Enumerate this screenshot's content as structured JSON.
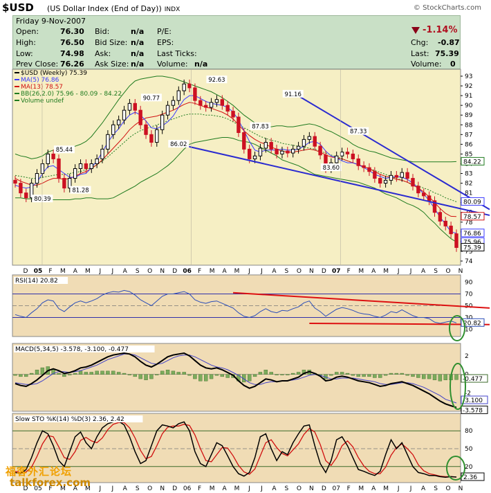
{
  "header": {
    "symbol": "$USD",
    "name": "(US Dollar Index (End of Day))",
    "exchange": "INDX",
    "copyright": "© StockCharts.com"
  },
  "quote": {
    "date": "Friday  9-Nov-2007",
    "open_l": "Open:",
    "open": "76.30",
    "high_l": "High:",
    "high": "76.50",
    "low_l": "Low:",
    "low": "74.98",
    "prev_l": "Prev Close:",
    "prev": "76.26",
    "bid_l": "Bid:",
    "bid": "n/a",
    "bidsize_l": "Bid Size:",
    "bidsize": "n/a",
    "ask_l": "Ask:",
    "ask": "n/a",
    "asksize_l": "Ask Size:",
    "asksize": "n/a",
    "pe_l": "P/E:",
    "eps_l": "EPS:",
    "lastticks_l": "Last Ticks:",
    "volume_ticks_l": "Volume:",
    "volume_ticks": "n/a",
    "change_pct": "-1.14%",
    "chg_l": "Chg:",
    "chg": "-0.87",
    "last_l": "Last:",
    "last": "75.39",
    "vol_l": "Volume:",
    "vol": "0"
  },
  "colors": {
    "price_bg": "#f6efc4",
    "ind_bg": "#f0dcb5",
    "up": "#000000",
    "down": "#cc1122",
    "ma5": "#3a3aff",
    "ma13": "#d01010",
    "bb": "#1e7a1e",
    "trend": "#2a2ad0",
    "redline": "#dd1010",
    "circle": "#2f8f2f"
  },
  "chart_data": [
    {
      "type": "candlestick",
      "title": "$USD (Weekly) 75.39",
      "legend": [
        "$USD (Weekly) 75.39",
        "MA(5) 76.86",
        "MA(13) 78.57",
        "BB(26,2.0) 75.96 - 80.09 - 84.22",
        "Volume undef"
      ],
      "ylim": [
        74,
        93
      ],
      "y_ticks": [
        74,
        75,
        76,
        77,
        78,
        79,
        80,
        81,
        82,
        83,
        84,
        85,
        86,
        87,
        88,
        89,
        90,
        91,
        92,
        93
      ],
      "x_ticks": [
        "D",
        "05",
        "F",
        "M",
        "A",
        "M",
        "J",
        "J",
        "A",
        "S",
        "O",
        "N",
        "D",
        "06",
        "F",
        "M",
        "A",
        "M",
        "J",
        "J",
        "A",
        "S",
        "O",
        "N",
        "D",
        "07",
        "F",
        "M",
        "A",
        "M",
        "J",
        "J",
        "A",
        "S",
        "O",
        "N"
      ],
      "close": [
        82.0,
        81.0,
        80.5,
        82.0,
        83.0,
        84.0,
        85.0,
        84.5,
        82.5,
        81.5,
        82.5,
        83.5,
        84.0,
        83.5,
        84.0,
        84.5,
        85.5,
        87.0,
        88.0,
        88.5,
        89.5,
        90.2,
        89.5,
        88.0,
        87.0,
        86.2,
        87.5,
        89.0,
        90.0,
        90.5,
        91.5,
        92.2,
        91.8,
        90.5,
        90.0,
        89.8,
        90.3,
        90.6,
        90.0,
        89.4,
        88.8,
        87.2,
        85.5,
        84.5,
        84.8,
        85.6,
        86.2,
        85.5,
        85.0,
        85.3,
        85.1,
        85.5,
        85.8,
        86.5,
        86.8,
        85.8,
        84.9,
        83.5,
        84.1,
        84.8,
        85.2,
        85.0,
        84.5,
        83.8,
        83.6,
        83.2,
        82.5,
        82.0,
        82.3,
        82.8,
        82.6,
        83.1,
        82.5,
        81.7,
        81.0,
        80.7,
        80.2,
        79.0,
        78.1,
        77.6,
        76.8,
        75.39
      ],
      "ma5": [
        81.8,
        81.6,
        81.5,
        81.6,
        82.1,
        83.0,
        83.7,
        83.8,
        83.4,
        83.0,
        82.6,
        82.6,
        82.9,
        83.0,
        83.6,
        84.3,
        85.2,
        86.2,
        87.0,
        87.6,
        88.4,
        89.0,
        89.3,
        89.0,
        88.4,
        87.7,
        87.6,
        87.9,
        88.3,
        88.9,
        89.8,
        90.6,
        91.0,
        91.0,
        90.7,
        90.4,
        90.2,
        90.1,
        90.0,
        89.8,
        89.3,
        88.5,
        87.4,
        86.3,
        85.4,
        85.2,
        85.4,
        85.4,
        85.4,
        85.5,
        85.4,
        85.4,
        85.5,
        85.8,
        86.2,
        86.3,
        86.0,
        85.3,
        84.8,
        84.6,
        84.3,
        84.1,
        84.1,
        83.9,
        83.6,
        83.3,
        82.9,
        82.7,
        82.5,
        82.6,
        82.7,
        82.6,
        82.4,
        82.0,
        81.5,
        80.9,
        80.2,
        79.4,
        78.5,
        77.8,
        77.0,
        76.86
      ],
      "ma13": [
        82.5,
        82.2,
        82.0,
        81.8,
        81.8,
        82.0,
        82.3,
        82.5,
        82.5,
        82.4,
        82.5,
        82.7,
        83.0,
        83.2,
        83.5,
        83.9,
        84.4,
        85.0,
        85.6,
        86.2,
        86.8,
        87.5,
        88.0,
        88.4,
        88.7,
        88.8,
        88.9,
        89.1,
        89.3,
        89.5,
        89.8,
        90.1,
        90.3,
        90.2,
        90.0,
        89.8,
        89.7,
        89.5,
        89.3,
        89.0,
        88.6,
        88.0,
        87.4,
        86.9,
        86.5,
        86.2,
        86.0,
        85.7,
        85.5,
        85.3,
        85.2,
        85.2,
        85.3,
        85.4,
        85.5,
        85.4,
        85.2,
        84.9,
        84.7,
        84.6,
        84.5,
        84.3,
        84.1,
        83.9,
        83.7,
        83.5,
        83.2,
        82.9,
        82.7,
        82.6,
        82.4,
        82.3,
        82.1,
        81.8,
        81.5,
        81.1,
        80.6,
        80.0,
        79.4,
        78.9,
        78.6,
        78.57
      ],
      "bb_upper": [
        85.0,
        84.8,
        84.7,
        84.5,
        84.6,
        84.8,
        85.2,
        85.4,
        85.5,
        85.5,
        85.6,
        85.8,
        86.0,
        86.3,
        86.8,
        87.5,
        88.2,
        89.0,
        89.8,
        90.6,
        91.3,
        92.0,
        92.5,
        92.7,
        92.8,
        92.9,
        93.0,
        93.0,
        92.9,
        92.8,
        92.6,
        92.4,
        92.2,
        92.0,
        91.8,
        91.6,
        91.4,
        91.1,
        90.8,
        90.4,
        90.0,
        89.5,
        89.0,
        88.6,
        88.2,
        87.9,
        87.8,
        87.8,
        87.9,
        87.9,
        87.8,
        87.8,
        87.9,
        88.0,
        88.1,
        88.0,
        87.8,
        87.5,
        87.3,
        87.0,
        86.7,
        86.4,
        86.0,
        85.7,
        85.5,
        85.3,
        85.2,
        85.0,
        84.8,
        84.6,
        84.5,
        84.4,
        84.3,
        84.2,
        84.2,
        84.2,
        84.2,
        84.2,
        84.2,
        84.2,
        84.2,
        84.22
      ],
      "bb_mid": [
        82.8,
        82.7,
        82.6,
        82.5,
        82.5,
        82.6,
        82.7,
        82.8,
        82.9,
        82.9,
        83.0,
        83.1,
        83.2,
        83.4,
        83.6,
        83.9,
        84.3,
        84.7,
        85.2,
        85.7,
        86.2,
        86.7,
        87.1,
        87.4,
        87.6,
        87.8,
        88.0,
        88.2,
        88.4,
        88.6,
        88.8,
        89.0,
        89.1,
        89.1,
        89.1,
        89.0,
        89.0,
        88.9,
        88.8,
        88.6,
        88.3,
        88.0,
        87.7,
        87.4,
        87.1,
        86.8,
        86.6,
        86.4,
        86.3,
        86.1,
        86.0,
        85.9,
        85.8,
        85.7,
        85.6,
        85.5,
        85.3,
        85.1,
        84.9,
        84.7,
        84.5,
        84.3,
        84.1,
        83.9,
        83.7,
        83.5,
        83.3,
        83.1,
        82.9,
        82.7,
        82.5,
        82.3,
        82.1,
        81.9,
        81.7,
        81.5,
        81.3,
        81.0,
        80.8,
        80.5,
        80.3,
        80.09
      ],
      "bb_lower": [
        80.5,
        80.5,
        80.4,
        80.4,
        80.4,
        80.4,
        80.3,
        80.3,
        80.3,
        80.3,
        80.3,
        80.4,
        80.4,
        80.5,
        80.5,
        80.4,
        80.4,
        80.4,
        80.5,
        80.8,
        81.1,
        81.4,
        81.7,
        82.1,
        82.4,
        82.7,
        83.0,
        83.4,
        83.8,
        84.3,
        84.9,
        85.5,
        86.0,
        86.2,
        86.3,
        86.4,
        86.5,
        86.6,
        86.7,
        86.7,
        86.6,
        86.4,
        86.3,
        86.2,
        86.0,
        85.7,
        85.4,
        85.1,
        84.8,
        84.4,
        84.2,
        84.0,
        83.8,
        83.5,
        83.2,
        82.9,
        82.8,
        82.7,
        82.6,
        82.5,
        82.4,
        82.3,
        82.2,
        82.1,
        81.9,
        81.7,
        81.5,
        81.2,
        80.9,
        80.7,
        80.5,
        80.2,
        79.9,
        79.7,
        79.4,
        79.0,
        78.4,
        77.9,
        77.3,
        76.8,
        76.3,
        75.96
      ],
      "annotations": [
        {
          "label": "80.39",
          "i": 5,
          "v": 80.39
        },
        {
          "label": "85.44",
          "i": 9,
          "v": 85.44
        },
        {
          "label": "81.28",
          "i": 12,
          "v": 81.28
        },
        {
          "label": "90.77",
          "i": 25,
          "v": 90.77
        },
        {
          "label": "86.02",
          "i": 30,
          "v": 86.02
        },
        {
          "label": "92.63",
          "i": 37,
          "v": 92.63
        },
        {
          "label": "87.83",
          "i": 45,
          "v": 87.83
        },
        {
          "label": "91.16",
          "i": 51,
          "v": 91.16
        },
        {
          "label": "83.60",
          "i": 58,
          "v": 83.6
        },
        {
          "label": "87.33",
          "i": 63,
          "v": 87.33
        }
      ],
      "right_labels": [
        "84.22",
        "80.09",
        "78.57",
        "76.86",
        "75.96",
        "75.39"
      ]
    },
    {
      "type": "line",
      "title": "RSI(14) 20.82",
      "ylim": [
        0,
        100
      ],
      "y_ticks": [
        10,
        30,
        50,
        70,
        90
      ],
      "values": [
        35,
        32,
        30,
        38,
        45,
        55,
        60,
        58,
        45,
        40,
        48,
        55,
        58,
        55,
        58,
        62,
        68,
        72,
        74,
        73,
        76,
        74,
        68,
        60,
        55,
        50,
        58,
        66,
        70,
        70,
        72,
        74,
        70,
        60,
        56,
        54,
        57,
        58,
        54,
        50,
        46,
        38,
        32,
        30,
        33,
        40,
        45,
        40,
        38,
        42,
        41,
        45,
        48,
        55,
        58,
        46,
        40,
        32,
        38,
        44,
        47,
        45,
        42,
        38,
        36,
        35,
        32,
        30,
        34,
        40,
        38,
        43,
        38,
        33,
        30,
        30,
        28,
        22,
        20,
        22,
        24,
        20.82
      ]
    },
    {
      "type": "line",
      "title": "MACD(5,34,5) -3.578, -3.100, -0.477",
      "ylim": [
        -3,
        2
      ],
      "macd": [
        -1.0,
        -1.2,
        -1.3,
        -1.0,
        -0.6,
        -0.1,
        0.4,
        0.6,
        0.4,
        0.1,
        0.2,
        0.4,
        0.7,
        0.8,
        1.0,
        1.3,
        1.6,
        1.9,
        2.1,
        2.2,
        2.3,
        2.2,
        1.9,
        1.4,
        1.0,
        0.8,
        1.1,
        1.5,
        1.9,
        2.1,
        2.2,
        2.3,
        2.0,
        1.5,
        1.0,
        0.7,
        0.6,
        0.7,
        0.5,
        0.2,
        -0.1,
        -0.7,
        -1.2,
        -1.5,
        -1.3,
        -0.9,
        -0.5,
        -0.6,
        -0.8,
        -0.7,
        -0.7,
        -0.5,
        -0.3,
        0.1,
        0.3,
        0.1,
        -0.2,
        -0.7,
        -0.6,
        -0.3,
        -0.2,
        -0.3,
        -0.5,
        -0.7,
        -0.8,
        -0.9,
        -1.1,
        -1.3,
        -1.2,
        -1.0,
        -0.9,
        -0.8,
        -1.0,
        -1.2,
        -1.5,
        -1.8,
        -2.1,
        -2.5,
        -2.9,
        -3.2,
        -3.4,
        -3.578
      ],
      "signal": [
        -0.9,
        -1.0,
        -1.1,
        -1.1,
        -1.0,
        -0.7,
        -0.3,
        0.1,
        0.3,
        0.3,
        0.2,
        0.3,
        0.4,
        0.6,
        0.8,
        1.0,
        1.3,
        1.6,
        1.8,
        2.0,
        2.2,
        2.2,
        2.1,
        1.8,
        1.5,
        1.2,
        1.1,
        1.2,
        1.5,
        1.8,
        2.0,
        2.1,
        2.1,
        1.9,
        1.6,
        1.3,
        1.0,
        0.8,
        0.7,
        0.5,
        0.2,
        -0.1,
        -0.5,
        -0.9,
        -1.1,
        -1.1,
        -0.9,
        -0.8,
        -0.8,
        -0.7,
        -0.7,
        -0.6,
        -0.5,
        -0.3,
        -0.1,
        0.0,
        -0.1,
        -0.3,
        -0.5,
        -0.5,
        -0.4,
        -0.4,
        -0.4,
        -0.5,
        -0.6,
        -0.7,
        -0.8,
        -1.0,
        -1.1,
        -1.1,
        -1.0,
        -0.9,
        -0.9,
        -1.0,
        -1.2,
        -1.4,
        -1.7,
        -2.0,
        -2.3,
        -2.7,
        -2.9,
        -3.1
      ]
    },
    {
      "type": "line",
      "title": "Slow STO %K(14) %D(3) 2.36, 2.42",
      "ylim": [
        0,
        100
      ],
      "y_ticks": [
        20,
        50,
        80
      ],
      "k": [
        10,
        8,
        15,
        35,
        60,
        80,
        75,
        55,
        30,
        20,
        45,
        70,
        78,
        60,
        50,
        70,
        85,
        92,
        95,
        96,
        90,
        70,
        45,
        25,
        30,
        55,
        80,
        90,
        88,
        85,
        92,
        95,
        80,
        45,
        25,
        20,
        40,
        60,
        55,
        38,
        20,
        8,
        4,
        10,
        35,
        70,
        75,
        50,
        30,
        45,
        40,
        60,
        75,
        88,
        90,
        55,
        25,
        10,
        30,
        65,
        70,
        55,
        35,
        15,
        12,
        8,
        5,
        12,
        40,
        65,
        50,
        60,
        40,
        20,
        10,
        8,
        5,
        5,
        3,
        2,
        3,
        2.36
      ],
      "d": [
        12,
        10,
        11,
        19,
        37,
        58,
        72,
        70,
        53,
        35,
        32,
        45,
        64,
        69,
        63,
        60,
        68,
        82,
        91,
        94,
        94,
        85,
        68,
        47,
        33,
        37,
        55,
        75,
        86,
        88,
        88,
        91,
        89,
        73,
        50,
        30,
        28,
        40,
        52,
        51,
        38,
        22,
        11,
        7,
        16,
        38,
        60,
        65,
        52,
        42,
        38,
        48,
        58,
        74,
        84,
        78,
        57,
        30,
        22,
        35,
        55,
        63,
        53,
        35,
        21,
        12,
        8,
        8,
        19,
        39,
        52,
        58,
        50,
        40,
        23,
        13,
        8,
        6,
        4,
        3,
        3,
        2.42
      ]
    }
  ],
  "watermark": {
    "cn": "福客外汇论坛",
    "url": "talkforex.com"
  }
}
